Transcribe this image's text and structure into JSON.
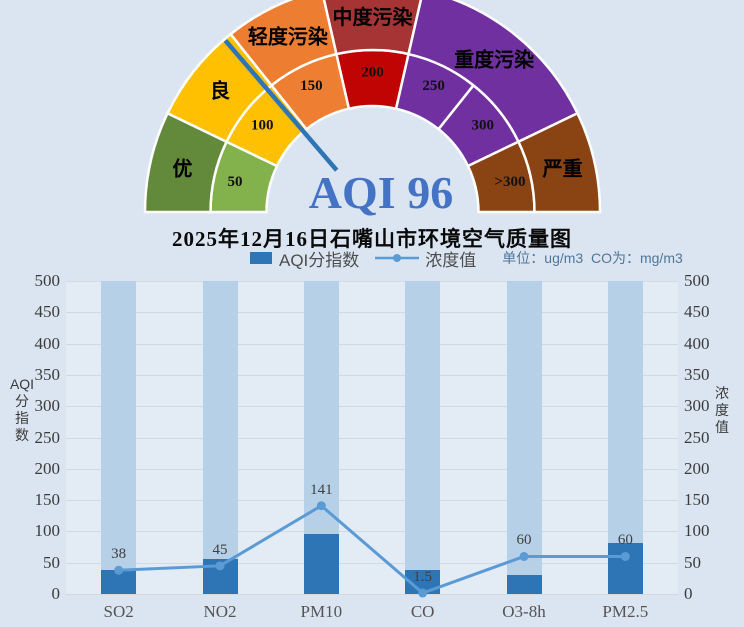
{
  "title": "2025年12月16日石嘴山市环境空气质量图",
  "gauge": {
    "value": 96,
    "value_label": "AQI 96",
    "value_color": "#4472c4",
    "needle_color": "#2e75b6",
    "scale_max": 350,
    "segments": [
      {
        "label": "优",
        "color": "#63893a",
        "span": 1
      },
      {
        "label": "良",
        "color": "#fec000",
        "span": 1
      },
      {
        "label": "轻度污染",
        "color": "#ed7d31",
        "span": 1
      },
      {
        "label": "中度污染",
        "color": "#a63434",
        "span": 1
      },
      {
        "label": "重度污染",
        "color": "#7030a0",
        "span": 2
      },
      {
        "label": "严重",
        "color": "#8a4413",
        "span": 1
      }
    ],
    "ticks": [
      {
        "label": "50",
        "color": "#83b14c"
      },
      {
        "label": "100",
        "color": "#fec000"
      },
      {
        "label": "150",
        "color": "#ee7e32"
      },
      {
        "label": "200",
        "color": "#c00404"
      },
      {
        "label": "250",
        "color": "#7030a0"
      },
      {
        "label": "300",
        "color": "#7030a0"
      },
      {
        "label": ">300",
        "color": "#8a4413"
      }
    ]
  },
  "legend": {
    "bar_label": "AQI分指数",
    "line_label": "浓度值",
    "unit_note": "单位：ug/m3  CO为：mg/m3"
  },
  "chart_data": {
    "type": "combo-bar-line",
    "categories": [
      "SO2",
      "NO2",
      "PM10",
      "CO",
      "O3-8h",
      "PM2.5"
    ],
    "series": [
      {
        "name": "AQI分指数",
        "type": "bar",
        "color": "#2e75b6",
        "values": [
          38,
          56,
          96,
          38,
          30,
          81
        ]
      },
      {
        "name": "浓度值",
        "type": "line",
        "color": "#5b9bd5",
        "values": [
          38,
          45,
          141,
          1.5,
          60,
          60
        ],
        "point_labels": [
          "38",
          "45",
          "141",
          "1.5",
          "60",
          "60"
        ]
      }
    ],
    "ylim": [
      0,
      500
    ],
    "ytick_step": 50,
    "grid": true,
    "left_axis_title": "AQI分指数",
    "left_axis_title_lines": [
      "AQI",
      "分",
      "指",
      "数"
    ],
    "right_axis_title": "浓度值",
    "right_axis_title_lines": [
      "浓",
      "度",
      "值"
    ],
    "background_columns": {
      "value": 500,
      "color": "#b6d0e8"
    }
  }
}
